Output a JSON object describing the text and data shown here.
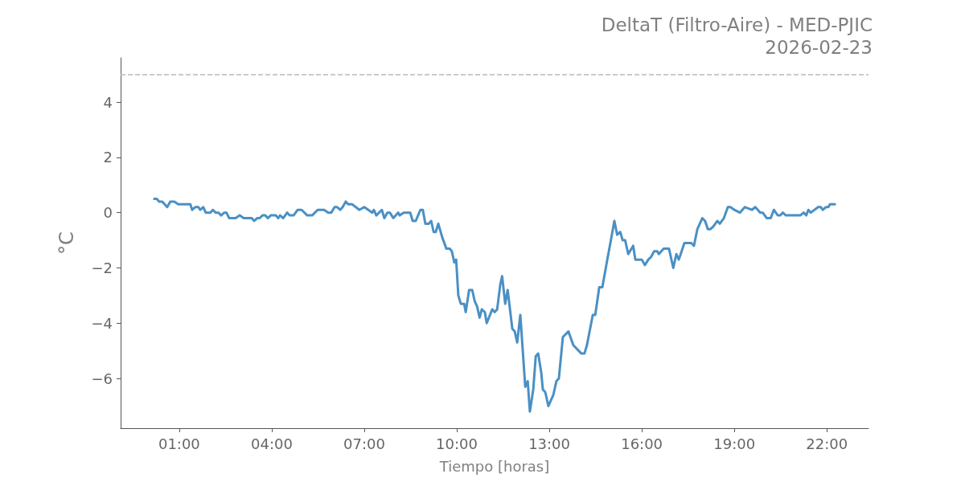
{
  "chart_data": {
    "type": "line",
    "title": "DeltaT (Filtro-Aire) - MED-PJIC\n2026-02-23",
    "xlabel": "Tiempo [horas]",
    "ylabel": "°C",
    "xlim": [
      -0.9,
      23.35
    ],
    "ylim": [
      -7.8,
      5.6
    ],
    "xticks": [
      {
        "value": 1,
        "label": "01:00"
      },
      {
        "value": 4,
        "label": "04:00"
      },
      {
        "value": 7,
        "label": "07:00"
      },
      {
        "value": 10,
        "label": "10:00"
      },
      {
        "value": 13,
        "label": "13:00"
      },
      {
        "value": 16,
        "label": "16:00"
      },
      {
        "value": 19,
        "label": "19:00"
      },
      {
        "value": 22,
        "label": "22:00"
      }
    ],
    "yticks": [
      {
        "value": -6,
        "label": "−6"
      },
      {
        "value": -4,
        "label": "−4"
      },
      {
        "value": -2,
        "label": "−2"
      },
      0,
      2,
      4
    ],
    "grid": false,
    "marker": "none",
    "line_style": "solid",
    "ref_lines": [
      {
        "axis": "y",
        "value": 5,
        "color": "#bbbbbb",
        "line_style": "dashed"
      }
    ],
    "series": [
      {
        "color": "#4a90c4",
        "x": [
          0.19,
          0.27,
          0.35,
          0.45,
          0.61,
          0.71,
          0.84,
          0.97,
          1.36,
          1.42,
          1.52,
          1.62,
          1.68,
          1.78,
          1.86,
          2.01,
          2.09,
          2.18,
          2.27,
          2.36,
          2.46,
          2.53,
          2.62,
          2.83,
          2.96,
          3.09,
          3.35,
          3.43,
          3.53,
          3.61,
          3.7,
          3.79,
          3.87,
          3.97,
          4.13,
          4.21,
          4.27,
          4.37,
          4.5,
          4.58,
          4.71,
          4.84,
          4.97,
          5.15,
          5.31,
          5.49,
          5.7,
          5.83,
          5.93,
          6.04,
          6.12,
          6.22,
          6.3,
          6.4,
          6.48,
          6.61,
          6.84,
          7.0,
          7.13,
          7.26,
          7.31,
          7.39,
          7.57,
          7.65,
          7.75,
          7.83,
          7.94,
          8.1,
          8.15,
          8.28,
          8.49,
          8.57,
          8.67,
          8.82,
          8.9,
          8.98,
          9.09,
          9.17,
          9.25,
          9.32,
          9.4,
          9.53,
          9.66,
          9.77,
          9.84,
          9.92,
          9.98,
          10.05,
          10.13,
          10.24,
          10.29,
          10.4,
          10.5,
          10.58,
          10.66,
          10.74,
          10.81,
          10.91,
          10.97,
          11.15,
          11.23,
          11.31,
          11.41,
          11.47,
          11.57,
          11.65,
          11.8,
          11.88,
          11.96,
          12.06,
          12.14,
          12.22,
          12.3,
          12.37,
          12.48,
          12.56,
          12.64,
          12.74,
          12.79,
          12.87,
          12.97,
          13.13,
          13.23,
          13.31,
          13.44,
          13.62,
          13.78,
          14.04,
          14.14,
          14.22,
          14.41,
          14.49,
          14.62,
          14.72,
          14.88,
          14.98,
          15.11,
          15.2,
          15.3,
          15.38,
          15.46,
          15.56,
          15.72,
          15.79,
          16.0,
          16.1,
          16.21,
          16.3,
          16.4,
          16.5,
          16.55,
          16.71,
          16.88,
          17.02,
          17.12,
          17.2,
          17.38,
          17.6,
          17.69,
          17.8,
          17.96,
          18.05,
          18.14,
          18.22,
          18.32,
          18.45,
          18.53,
          18.66,
          18.79,
          18.87,
          19.0,
          19.18,
          19.34,
          19.57,
          19.68,
          19.84,
          19.92,
          20.05,
          20.18,
          20.28,
          20.41,
          20.49,
          20.57,
          20.67,
          21.14,
          21.25,
          21.33,
          21.4,
          21.48,
          21.72,
          21.8,
          21.87,
          21.97,
          22.05,
          22.1,
          22.26
        ],
        "values": [
          0.5,
          0.5,
          0.4,
          0.4,
          0.2,
          0.4,
          0.4,
          0.3,
          0.3,
          0.1,
          0.2,
          0.2,
          0.1,
          0.2,
          0.0,
          0.0,
          0.1,
          0.0,
          0.0,
          -0.1,
          0.0,
          0.0,
          -0.2,
          -0.2,
          -0.1,
          -0.2,
          -0.2,
          -0.3,
          -0.2,
          -0.2,
          -0.1,
          -0.1,
          -0.2,
          -0.1,
          -0.1,
          -0.2,
          -0.1,
          -0.2,
          0.0,
          -0.1,
          -0.1,
          0.1,
          0.1,
          -0.1,
          -0.1,
          0.1,
          0.1,
          0.0,
          0.0,
          0.2,
          0.2,
          0.1,
          0.2,
          0.4,
          0.3,
          0.3,
          0.1,
          0.2,
          0.1,
          0.0,
          0.1,
          -0.1,
          0.1,
          -0.2,
          0.0,
          0.0,
          -0.2,
          0.0,
          -0.1,
          0.0,
          0.0,
          -0.3,
          -0.3,
          0.1,
          0.1,
          -0.4,
          -0.4,
          -0.3,
          -0.7,
          -0.7,
          -0.4,
          -0.9,
          -1.3,
          -1.3,
          -1.4,
          -1.8,
          -1.7,
          -3.0,
          -3.3,
          -3.3,
          -3.6,
          -2.8,
          -2.8,
          -3.2,
          -3.4,
          -3.8,
          -3.5,
          -3.6,
          -4.0,
          -3.5,
          -3.6,
          -3.5,
          -2.6,
          -2.3,
          -3.3,
          -2.8,
          -4.2,
          -4.3,
          -4.7,
          -3.7,
          -5.0,
          -6.3,
          -6.1,
          -7.2,
          -6.4,
          -5.2,
          -5.1,
          -5.8,
          -6.4,
          -6.5,
          -7.0,
          -6.6,
          -6.1,
          -6.0,
          -4.5,
          -4.3,
          -4.8,
          -5.1,
          -5.1,
          -4.8,
          -3.7,
          -3.7,
          -2.7,
          -2.7,
          -1.7,
          -1.1,
          -0.3,
          -0.8,
          -0.7,
          -1.0,
          -1.0,
          -1.5,
          -1.2,
          -1.7,
          -1.7,
          -1.9,
          -1.7,
          -1.6,
          -1.4,
          -1.4,
          -1.5,
          -1.3,
          -1.3,
          -2.0,
          -1.5,
          -1.7,
          -1.1,
          -1.1,
          -1.2,
          -0.6,
          -0.2,
          -0.3,
          -0.6,
          -0.6,
          -0.5,
          -0.3,
          -0.4,
          -0.2,
          0.2,
          0.2,
          0.1,
          0.0,
          0.2,
          0.1,
          0.2,
          0.0,
          0.0,
          -0.2,
          -0.2,
          0.1,
          -0.1,
          -0.1,
          0.0,
          -0.1,
          -0.1,
          0.0,
          -0.1,
          0.1,
          0.0,
          0.2,
          0.2,
          0.1,
          0.2,
          0.2,
          0.3,
          0.3
        ]
      }
    ]
  }
}
